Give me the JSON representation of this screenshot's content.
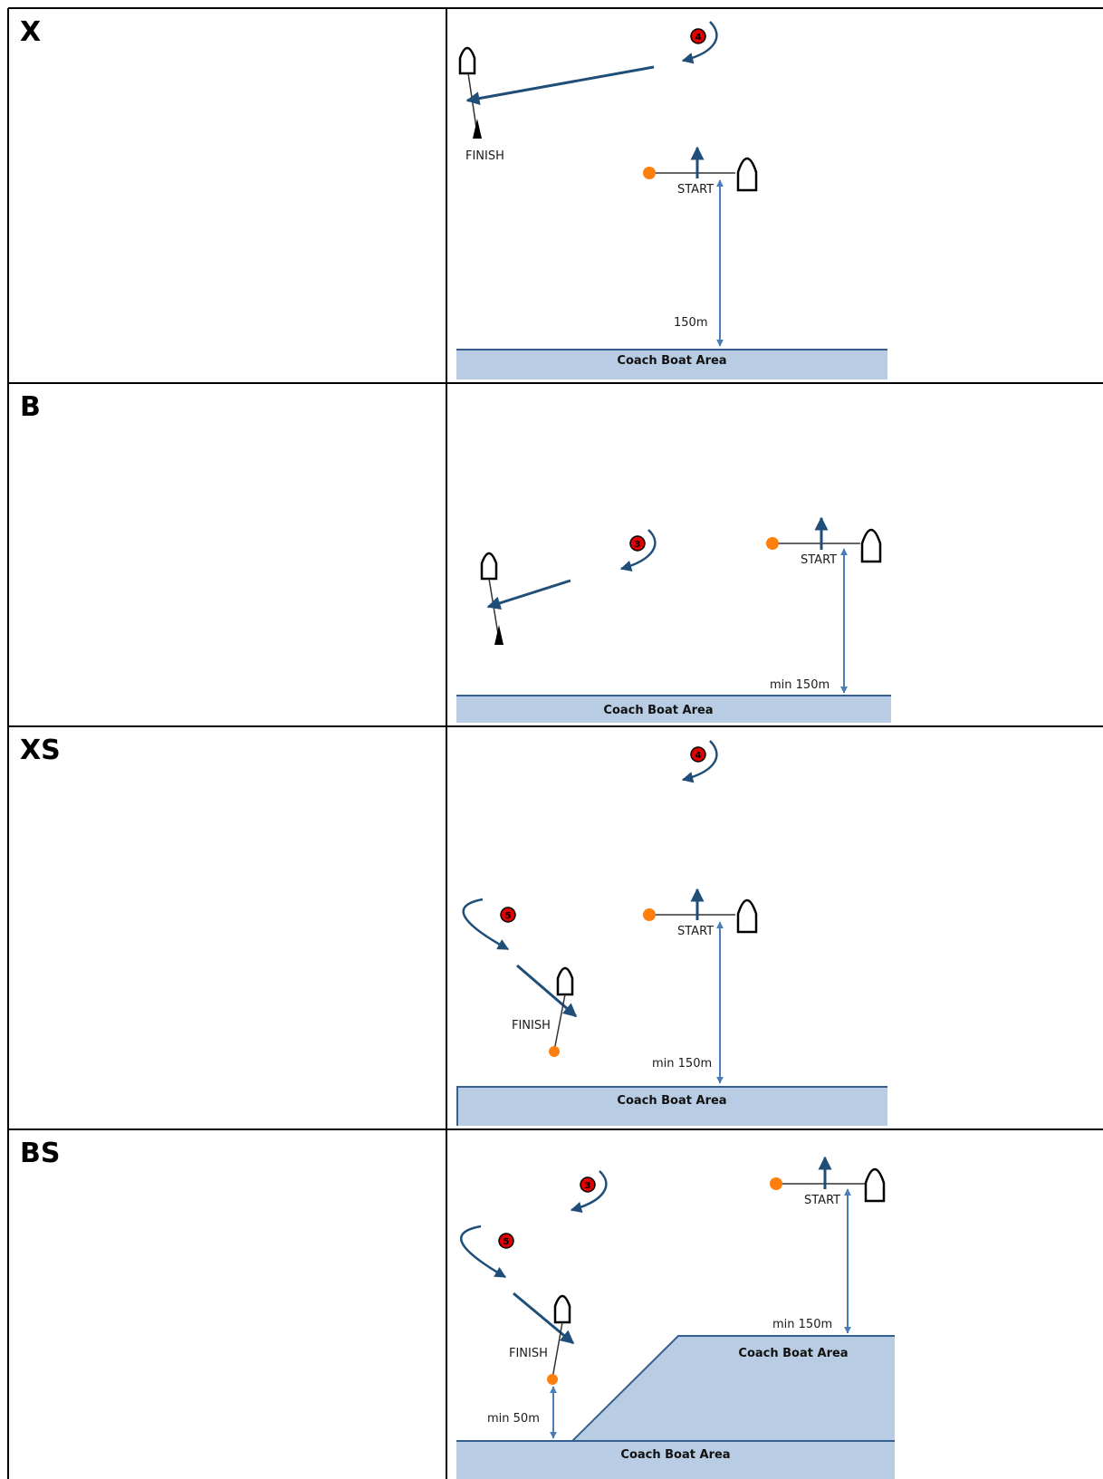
{
  "rows": [
    {
      "id": "X",
      "label": "X",
      "labels": {
        "finish": "FINISH",
        "start": "START",
        "distance": "150m",
        "coach_area": "Coach Boat Area"
      },
      "mark_numbers": [
        "4"
      ]
    },
    {
      "id": "B",
      "label": "B",
      "labels": {
        "start": "START",
        "distance": "min 150m",
        "coach_area": "Coach Boat Area"
      },
      "mark_numbers": [
        "3"
      ]
    },
    {
      "id": "XS",
      "label": "XS",
      "labels": {
        "finish": "FINISH",
        "start": "START",
        "distance": "min 150m",
        "coach_area": "Coach Boat Area"
      },
      "mark_numbers": [
        "4",
        "5"
      ]
    },
    {
      "id": "BS",
      "label": "BS",
      "labels": {
        "finish": "FINISH",
        "start": "START",
        "distance": "min 150m",
        "distance2": "min 50m",
        "coach_area": "Coach Boat Area",
        "coach_area2": "Coach Boat Area"
      },
      "mark_numbers": [
        "3",
        "5"
      ]
    }
  ],
  "colors": {
    "arrow": "#1f4e79",
    "distance_arrow": "#4a7ebb",
    "coach_fill": "#b8cce4",
    "coach_edge": "#365f91",
    "orange_buoy": "#ff7f0e",
    "mark_red": "#e00000",
    "border": "#000000"
  },
  "icons": [
    "boat-icon",
    "orange-buoy-icon",
    "numbered-mark-icon",
    "pin-icon"
  ]
}
